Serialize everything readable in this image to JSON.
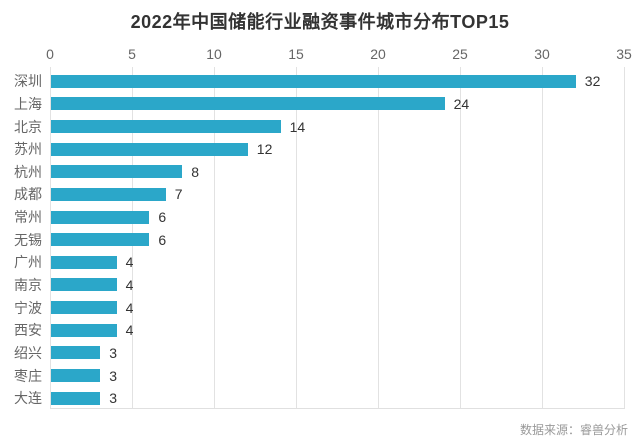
{
  "chart_data": {
    "type": "bar",
    "orientation": "horizontal",
    "title": "2022年中国储能行业融资事件城市分布TOP15",
    "categories": [
      "深圳",
      "上海",
      "北京",
      "苏州",
      "杭州",
      "成都",
      "常州",
      "无锡",
      "广州",
      "南京",
      "宁波",
      "西安",
      "绍兴",
      "枣庄",
      "大连"
    ],
    "values": [
      32,
      24,
      14,
      12,
      8,
      7,
      6,
      6,
      4,
      4,
      4,
      4,
      3,
      3,
      3
    ],
    "xlabel": "",
    "ylabel": "",
    "xlim": [
      0,
      35
    ],
    "x_ticks": [
      0,
      5,
      10,
      15,
      20,
      25,
      30,
      35
    ],
    "axis_position": "top",
    "grid": true,
    "legend_position": "none",
    "bar_color": "#2ba7c9",
    "grid_color": "#e2e2e2",
    "title_color": "#333333",
    "axis_label_color": "#666666",
    "value_label_color": "#333333",
    "source_color": "#999999",
    "source": "数据来源：睿兽分析"
  }
}
